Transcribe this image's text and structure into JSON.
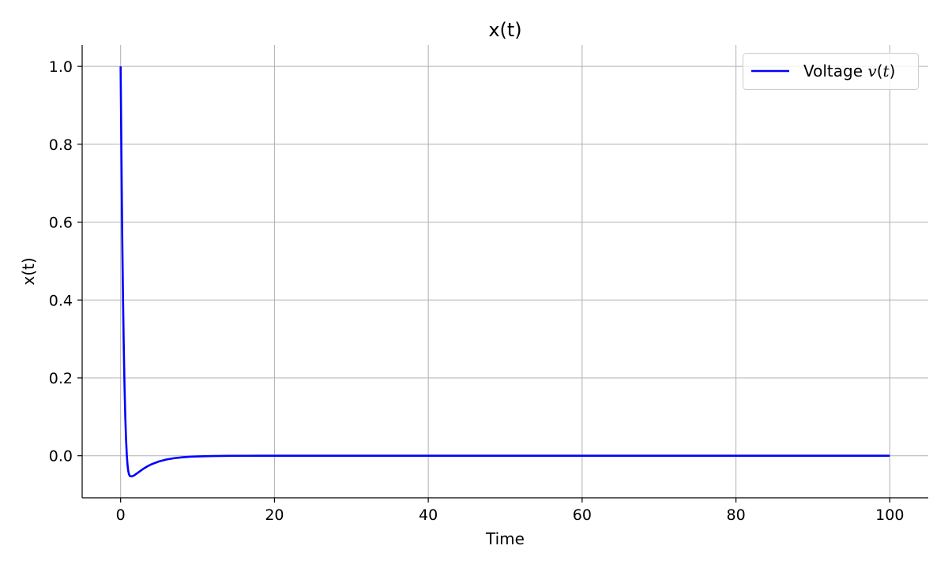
{
  "chart_data": {
    "type": "line",
    "title": "x(t)",
    "xlabel": "Time",
    "ylabel": "x(t)",
    "xlim": [
      -5,
      105
    ],
    "ylim": [
      -0.108,
      1.055
    ],
    "xticks": [
      0,
      20,
      40,
      60,
      80,
      100
    ],
    "yticks": [
      0.0,
      0.2,
      0.4,
      0.6,
      0.8,
      1.0
    ],
    "xtick_labels": [
      "0",
      "20",
      "40",
      "60",
      "80",
      "100"
    ],
    "ytick_labels": [
      "0.0",
      "0.2",
      "0.4",
      "0.6",
      "0.8",
      "1.0"
    ],
    "grid": true,
    "legend_position": "top-right",
    "legend": {
      "prefix": "Voltage",
      "math_var": "v",
      "math_open": "(",
      "math_arg": "t",
      "math_close": ")"
    },
    "series": [
      {
        "color": "#0000ff",
        "x": [
          0,
          0.1,
          0.2,
          0.3,
          0.4,
          0.5,
          0.6,
          0.7,
          0.8,
          0.9,
          1.0,
          1.1,
          1.2,
          1.4,
          1.6,
          1.8,
          2.0,
          2.5,
          3,
          3.5,
          4,
          5,
          6,
          7,
          8,
          9,
          10,
          12,
          14,
          16,
          18,
          20,
          25,
          30,
          40,
          50,
          60,
          70,
          80,
          90,
          100
        ],
        "y": [
          1.0,
          0.78,
          0.58,
          0.42,
          0.29,
          0.185,
          0.105,
          0.045,
          0.003,
          -0.024,
          -0.04,
          -0.048,
          -0.052,
          -0.053,
          -0.052,
          -0.05,
          -0.047,
          -0.04,
          -0.033,
          -0.027,
          -0.022,
          -0.0145,
          -0.0095,
          -0.0062,
          -0.004,
          -0.0026,
          -0.0017,
          -0.0007,
          -0.0003,
          -0.0001,
          -5e-05,
          0,
          0,
          0,
          0,
          0,
          0,
          0,
          0,
          0,
          0
        ]
      }
    ]
  }
}
